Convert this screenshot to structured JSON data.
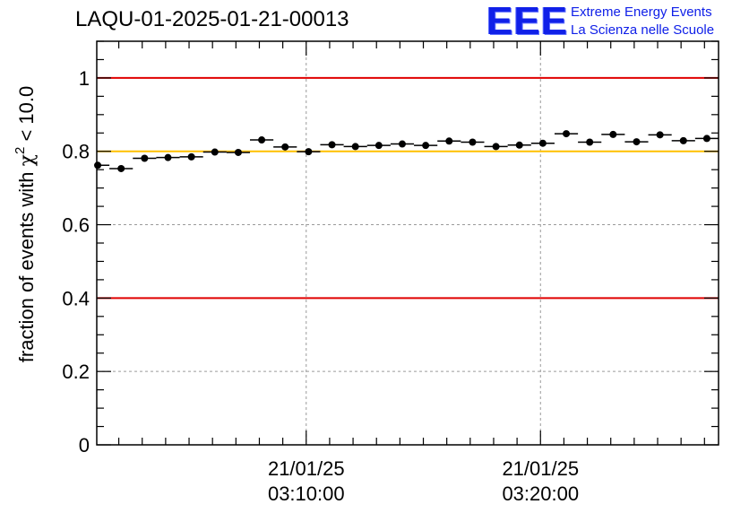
{
  "header": {
    "title": "LAQU-01-2025-01-21-00013",
    "logo_mark": "EEE",
    "logo_line1": "Extreme Energy Events",
    "logo_line2": "La Scienza nelle Scuole"
  },
  "colors": {
    "limit_line": "#e00000",
    "reference_line": "#ffc000",
    "logo": "#1020e8",
    "marker": "#000000",
    "grid": "#9a9a9a"
  },
  "chart_data": {
    "type": "scatter",
    "title": "LAQU-01-2025-01-21-00013",
    "ylabel": "fraction of events with χ² < 10.0",
    "ylabel_parts": {
      "prefix": "fraction of events with ",
      "symbol": "χ",
      "exponent": "2",
      "suffix": " < 10.0"
    },
    "xlabel": "",
    "x_unit": "minutes after 03:00:00 (21/01/25)",
    "xlim": [
      1.06,
      27.6
    ],
    "ylim": [
      0,
      1.1
    ],
    "y_ticks": [
      0,
      0.2,
      0.4,
      0.6,
      0.8,
      1
    ],
    "y_tick_labels": [
      "0",
      "0.2",
      "0.4",
      "0.6",
      "0.8",
      "1"
    ],
    "x_ticks": [
      {
        "x": 10,
        "date": "21/01/25",
        "time": "03:10:00"
      },
      {
        "x": 20,
        "date": "21/01/25",
        "time": "03:20:00"
      }
    ],
    "bin_half_width": 0.5,
    "reference_lines": [
      {
        "name": "upper-limit",
        "y": 1.0,
        "color": "#e00000"
      },
      {
        "name": "reference",
        "y": 0.8,
        "color": "#ffc000"
      },
      {
        "name": "lower-limit",
        "y": 0.4,
        "color": "#e00000"
      }
    ],
    "series": [
      {
        "name": "fraction",
        "x": [
          1.1,
          2.1,
          3.1,
          4.1,
          5.1,
          6.1,
          7.1,
          8.1,
          9.1,
          10.1,
          11.1,
          12.1,
          13.1,
          14.1,
          15.1,
          16.1,
          17.1,
          18.1,
          19.1,
          20.1,
          21.1,
          22.1,
          23.1,
          24.1,
          25.1,
          26.1,
          27.1
        ],
        "values": [
          0.762,
          0.753,
          0.781,
          0.783,
          0.785,
          0.798,
          0.797,
          0.831,
          0.812,
          0.799,
          0.818,
          0.813,
          0.816,
          0.82,
          0.816,
          0.828,
          0.825,
          0.813,
          0.817,
          0.822,
          0.848,
          0.825,
          0.846,
          0.826,
          0.845,
          0.829,
          0.835
        ]
      }
    ]
  }
}
